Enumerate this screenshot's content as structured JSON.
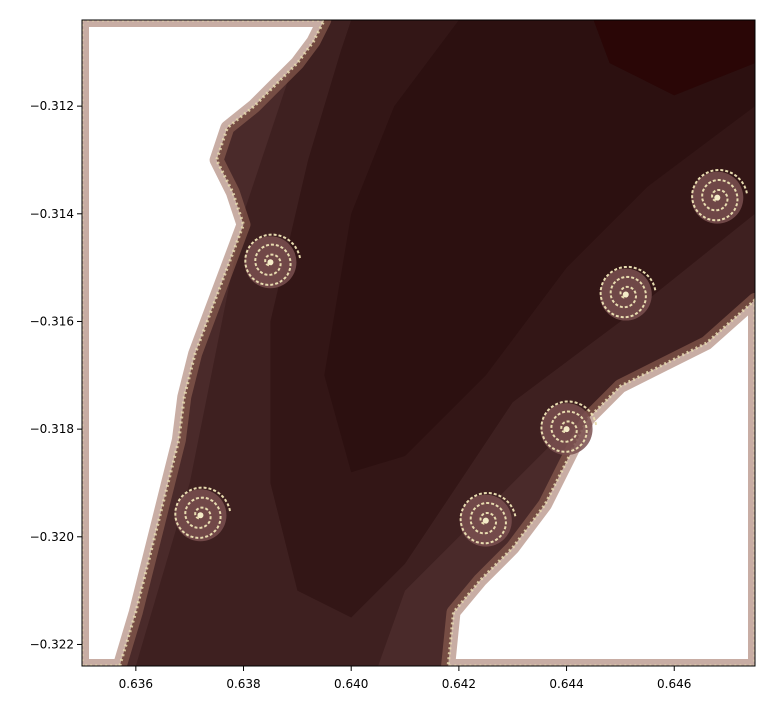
{
  "chart_data": {
    "type": "heatmap",
    "title": "",
    "xlabel": "",
    "ylabel": "",
    "xlim": [
      0.635,
      0.6475
    ],
    "ylim": [
      -0.3224,
      -0.3104
    ],
    "x_ticks": [
      0.636,
      0.638,
      0.64,
      0.642,
      0.644,
      0.646
    ],
    "x_tick_labels": [
      "0.636",
      "0.638",
      "0.640",
      "0.642",
      "0.644",
      "0.646"
    ],
    "y_ticks": [
      -0.312,
      -0.314,
      -0.316,
      -0.318,
      -0.32,
      -0.322
    ],
    "y_tick_labels": [
      "−0.312",
      "−0.314",
      "−0.316",
      "−0.318",
      "−0.320",
      "−0.322"
    ],
    "grid": false,
    "legend": "none",
    "colormap": "pink",
    "colors": {
      "background": "#ffffff",
      "deep": "#2a0606",
      "mid": "#3a1a1a",
      "light": "#6a4646",
      "edge": "#9a6a5a",
      "filament": "#e8dcb0"
    },
    "regions": [
      {
        "name": "escape-region-left",
        "boundary": [
          [
            0.635,
            -0.3104
          ],
          [
            0.6395,
            -0.3104
          ],
          [
            0.6393,
            -0.3108
          ],
          [
            0.639,
            -0.3112
          ],
          [
            0.6386,
            -0.3116
          ],
          [
            0.6382,
            -0.312
          ],
          [
            0.6377,
            -0.3124
          ],
          [
            0.6375,
            -0.313
          ],
          [
            0.6378,
            -0.3136
          ],
          [
            0.638,
            -0.3142
          ],
          [
            0.6377,
            -0.315
          ],
          [
            0.6374,
            -0.3158
          ],
          [
            0.6371,
            -0.3166
          ],
          [
            0.6369,
            -0.3174
          ],
          [
            0.6368,
            -0.3182
          ],
          [
            0.6366,
            -0.319
          ],
          [
            0.6364,
            -0.3198
          ],
          [
            0.6362,
            -0.3206
          ],
          [
            0.636,
            -0.3214
          ],
          [
            0.6357,
            -0.3224
          ],
          [
            0.635,
            -0.3224
          ]
        ]
      },
      {
        "name": "escape-region-right",
        "boundary": [
          [
            0.6475,
            -0.3156
          ],
          [
            0.6466,
            -0.3164
          ],
          [
            0.6458,
            -0.3168
          ],
          [
            0.645,
            -0.3172
          ],
          [
            0.6444,
            -0.3178
          ],
          [
            0.644,
            -0.3186
          ],
          [
            0.6436,
            -0.3194
          ],
          [
            0.643,
            -0.3202
          ],
          [
            0.6424,
            -0.3208
          ],
          [
            0.6419,
            -0.3214
          ],
          [
            0.6418,
            -0.3224
          ],
          [
            0.6475,
            -0.3224
          ]
        ]
      },
      {
        "name": "iteration-band-2",
        "boundary": [
          [
            0.6395,
            -0.3104
          ],
          [
            0.6475,
            -0.3104
          ],
          [
            0.6475,
            -0.316
          ],
          [
            0.644,
            -0.318
          ],
          [
            0.642,
            -0.32
          ],
          [
            0.641,
            -0.321
          ],
          [
            0.6405,
            -0.3224
          ],
          [
            0.636,
            -0.3224
          ],
          [
            0.637,
            -0.319
          ],
          [
            0.638,
            -0.314
          ],
          [
            0.639,
            -0.311
          ]
        ]
      },
      {
        "name": "iteration-band-1",
        "boundary": [
          [
            0.64,
            -0.3104
          ],
          [
            0.6475,
            -0.3104
          ],
          [
            0.6475,
            -0.314
          ],
          [
            0.645,
            -0.316
          ],
          [
            0.643,
            -0.3175
          ],
          [
            0.642,
            -0.319
          ],
          [
            0.641,
            -0.3205
          ],
          [
            0.64,
            -0.3215
          ],
          [
            0.639,
            -0.321
          ],
          [
            0.6385,
            -0.319
          ],
          [
            0.6385,
            -0.316
          ],
          [
            0.6392,
            -0.313
          ],
          [
            0.6398,
            -0.311
          ]
        ]
      },
      {
        "name": "iteration-band-0",
        "boundary": [
          [
            0.642,
            -0.3104
          ],
          [
            0.6475,
            -0.3104
          ],
          [
            0.6475,
            -0.312
          ],
          [
            0.6455,
            -0.3135
          ],
          [
            0.644,
            -0.315
          ],
          [
            0.6425,
            -0.317
          ],
          [
            0.641,
            -0.3185
          ],
          [
            0.64,
            -0.3188
          ],
          [
            0.6395,
            -0.317
          ],
          [
            0.64,
            -0.314
          ],
          [
            0.6408,
            -0.312
          ]
        ]
      },
      {
        "name": "iteration-band-deepest",
        "boundary": [
          [
            0.6445,
            -0.3104
          ],
          [
            0.6475,
            -0.3104
          ],
          [
            0.6475,
            -0.3112
          ],
          [
            0.646,
            -0.3118
          ],
          [
            0.6448,
            -0.3112
          ]
        ]
      }
    ],
    "spirals": [
      {
        "x": 0.6425,
        "y": -0.3197
      },
      {
        "x": 0.644,
        "y": -0.318
      },
      {
        "x": 0.6451,
        "y": -0.3155
      },
      {
        "x": 0.6468,
        "y": -0.3137
      },
      {
        "x": 0.6385,
        "y": -0.3149
      },
      {
        "x": 0.6372,
        "y": -0.3196
      }
    ]
  }
}
